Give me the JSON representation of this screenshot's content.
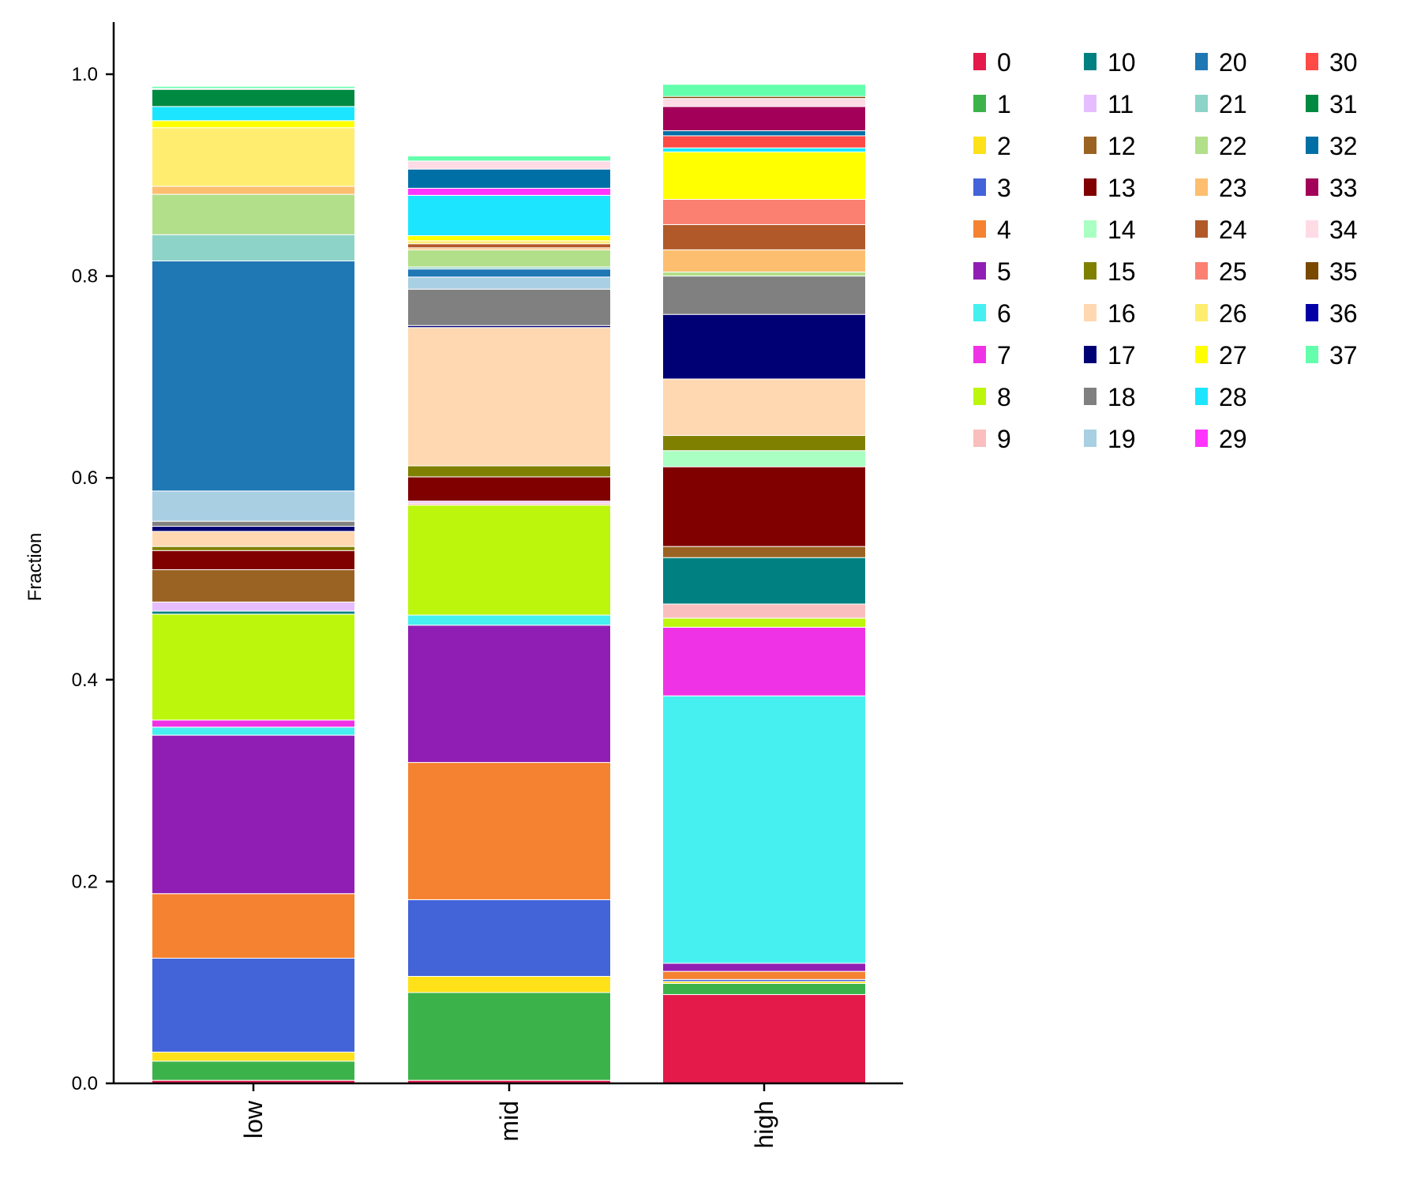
{
  "chart_data": {
    "type": "bar",
    "stacked": true,
    "ylabel": "Fraction",
    "xlabel": "",
    "ylim": [
      0,
      1.05
    ],
    "yticks": [
      "0.0",
      "0.2",
      "0.4",
      "0.6",
      "0.8",
      "1.0"
    ],
    "categories": [
      "low",
      "mid",
      "high"
    ],
    "legend_position": "right",
    "legend_columns": 4,
    "series": [
      {
        "name": "0",
        "color": "#e31a4a",
        "values": [
          0.003,
          0.003,
          0.088
        ]
      },
      {
        "name": "1",
        "color": "#3cb34a",
        "values": [
          0.019,
          0.087,
          0.011
        ]
      },
      {
        "name": "2",
        "color": "#ffe119",
        "values": [
          0.009,
          0.016,
          0.002
        ]
      },
      {
        "name": "3",
        "color": "#4363d8",
        "values": [
          0.093,
          0.076,
          0.002
        ]
      },
      {
        "name": "4",
        "color": "#f58231",
        "values": [
          0.064,
          0.136,
          0.008
        ]
      },
      {
        "name": "5",
        "color": "#911eb4",
        "values": [
          0.157,
          0.136,
          0.008
        ]
      },
      {
        "name": "6",
        "color": "#46f0f0",
        "values": [
          0.008,
          0.01,
          0.265
        ]
      },
      {
        "name": "7",
        "color": "#f032e6",
        "values": [
          0.007,
          0.0,
          0.068
        ]
      },
      {
        "name": "8",
        "color": "#bcf60c",
        "values": [
          0.105,
          0.109,
          0.009
        ]
      },
      {
        "name": "9",
        "color": "#fabebe",
        "values": [
          0.0,
          0.002,
          0.014
        ]
      },
      {
        "name": "10",
        "color": "#008080",
        "values": [
          0.003,
          0.0,
          0.046
        ]
      },
      {
        "name": "11",
        "color": "#e6beff",
        "values": [
          0.009,
          0.002,
          0.0
        ]
      },
      {
        "name": "12",
        "color": "#9a6324",
        "values": [
          0.032,
          0.0,
          0.011
        ]
      },
      {
        "name": "13",
        "color": "#800000",
        "values": [
          0.019,
          0.024,
          0.079
        ]
      },
      {
        "name": "14",
        "color": "#aaffc3",
        "values": [
          0.0,
          0.0,
          0.016
        ]
      },
      {
        "name": "15",
        "color": "#808000",
        "values": [
          0.004,
          0.011,
          0.015
        ]
      },
      {
        "name": "16",
        "color": "#ffd8b1",
        "values": [
          0.015,
          0.137,
          0.056
        ]
      },
      {
        "name": "17",
        "color": "#000075",
        "values": [
          0.005,
          0.002,
          0.064
        ]
      },
      {
        "name": "18",
        "color": "#808080",
        "values": [
          0.005,
          0.036,
          0.038
        ]
      },
      {
        "name": "19",
        "color": "#a9cfe3",
        "values": [
          0.03,
          0.012,
          0.0
        ]
      },
      {
        "name": "20",
        "color": "#1f77b4",
        "values": [
          0.228,
          0.008,
          0.0
        ]
      },
      {
        "name": "21",
        "color": "#8dd3c7",
        "values": [
          0.026,
          0.002,
          0.0
        ]
      },
      {
        "name": "22",
        "color": "#b2df8a",
        "values": [
          0.04,
          0.017,
          0.004
        ]
      },
      {
        "name": "23",
        "color": "#fdbf6f",
        "values": [
          0.008,
          0.002,
          0.022
        ]
      },
      {
        "name": "24",
        "color": "#b15928",
        "values": [
          0.0,
          0.004,
          0.025
        ]
      },
      {
        "name": "25",
        "color": "#fb8072",
        "values": [
          0.0,
          0.0,
          0.025
        ]
      },
      {
        "name": "26",
        "color": "#ffed6f",
        "values": [
          0.058,
          0.003,
          0.0
        ]
      },
      {
        "name": "27",
        "color": "#ffff00",
        "values": [
          0.007,
          0.005,
          0.047
        ]
      },
      {
        "name": "28",
        "color": "#1ce6ff",
        "values": [
          0.014,
          0.04,
          0.004
        ]
      },
      {
        "name": "29",
        "color": "#ff34ff",
        "values": [
          0.0,
          0.007,
          0.0
        ]
      },
      {
        "name": "30",
        "color": "#ff4a46",
        "values": [
          0.0,
          0.0,
          0.012
        ]
      },
      {
        "name": "31",
        "color": "#008941",
        "values": [
          0.017,
          0.0,
          0.0
        ]
      },
      {
        "name": "32",
        "color": "#006fa6",
        "values": [
          0.0,
          0.019,
          0.005
        ]
      },
      {
        "name": "33",
        "color": "#a30059",
        "values": [
          0.0,
          0.0,
          0.024
        ]
      },
      {
        "name": "34",
        "color": "#ffdbe5",
        "values": [
          0.001,
          0.008,
          0.008
        ]
      },
      {
        "name": "35",
        "color": "#7a4900",
        "values": [
          0.0,
          0.0,
          0.002
        ]
      },
      {
        "name": "36",
        "color": "#0000a6",
        "values": [
          0.0,
          0.0,
          0.0
        ]
      },
      {
        "name": "37",
        "color": "#63ffac",
        "values": [
          0.002,
          0.005,
          0.012
        ]
      }
    ]
  }
}
